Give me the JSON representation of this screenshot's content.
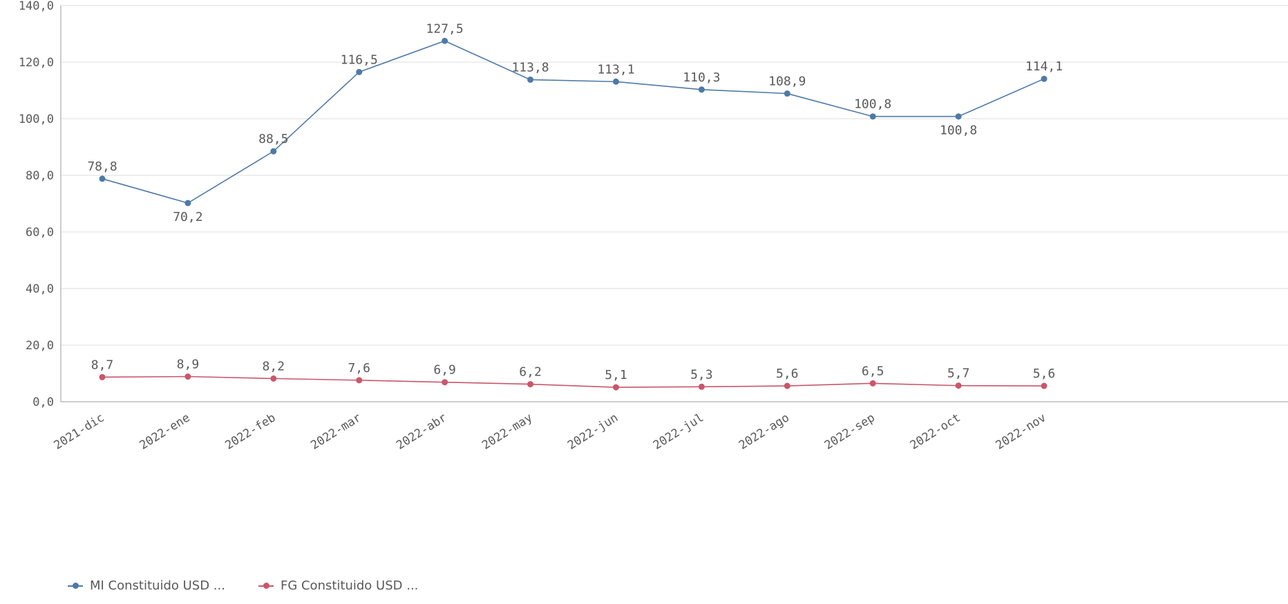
{
  "chart_data": {
    "type": "line",
    "categories": [
      "2021-dic",
      "2022-ene",
      "2022-feb",
      "2022-mar",
      "2022-abr",
      "2022-may",
      "2022-jun",
      "2022-jul",
      "2022-ago",
      "2022-sep",
      "2022-oct",
      "2022-nov"
    ],
    "series": [
      {
        "name": "MI Constituido USD ...",
        "color": "#4e79a7",
        "values": [
          78.8,
          70.2,
          88.5,
          116.5,
          127.5,
          113.8,
          113.1,
          110.3,
          108.9,
          100.8,
          100.8,
          114.1
        ],
        "labels": [
          "78,8",
          "70,2",
          "88,5",
          "116,5",
          "127,5",
          "113,8",
          "113,1",
          "110,3",
          "108,9",
          "100,8",
          "100,8",
          "114,1"
        ],
        "label_side": [
          "above",
          "below",
          "above",
          "above",
          "above",
          "above",
          "above",
          "above",
          "above",
          "above",
          "below",
          "above"
        ]
      },
      {
        "name": "FG Constituido USD ...",
        "color": "#c9566a",
        "values": [
          8.7,
          8.9,
          8.2,
          7.6,
          6.9,
          6.2,
          5.1,
          5.3,
          5.6,
          6.5,
          5.7,
          5.6
        ],
        "labels": [
          "8,7",
          "8,9",
          "8,2",
          "7,6",
          "6,9",
          "6,2",
          "5,1",
          "5,3",
          "5,6",
          "6,5",
          "5,7",
          "5,6"
        ],
        "label_side": [
          "above",
          "above",
          "above",
          "above",
          "above",
          "above",
          "above",
          "above",
          "above",
          "above",
          "above",
          "above"
        ]
      }
    ],
    "ylim": [
      0,
      140
    ],
    "yticks": [
      0,
      20,
      40,
      60,
      80,
      100,
      120,
      140
    ],
    "ytick_labels": [
      "0,0",
      "20,0",
      "40,0",
      "60,0",
      "80,0",
      "100,0",
      "120,0",
      "140,0"
    ],
    "grid": true,
    "legend_position": "bottom-left"
  }
}
